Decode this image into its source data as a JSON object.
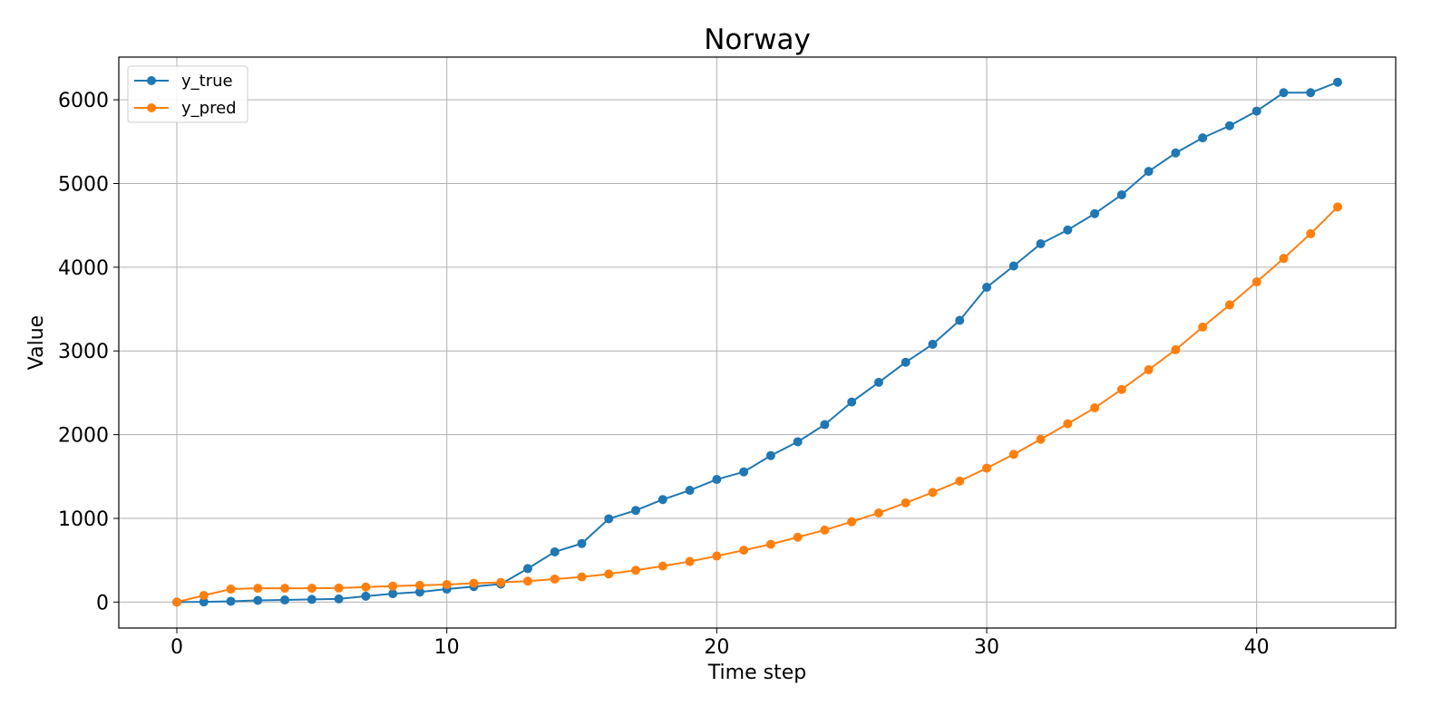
{
  "chart_data": {
    "type": "line",
    "title": "Norway",
    "xlabel": "Time step",
    "ylabel": "Value",
    "xlim": [
      -2.15,
      45.15
    ],
    "ylim": [
      -310,
      6510
    ],
    "xticks": [
      0,
      10,
      20,
      30,
      40
    ],
    "yticks": [
      0,
      1000,
      2000,
      3000,
      4000,
      5000,
      6000
    ],
    "grid": true,
    "legend_position": "upper-left",
    "x": [
      0,
      1,
      2,
      3,
      4,
      5,
      6,
      7,
      8,
      9,
      10,
      11,
      12,
      13,
      14,
      15,
      16,
      17,
      18,
      19,
      20,
      21,
      22,
      23,
      24,
      25,
      26,
      27,
      28,
      29,
      30,
      31,
      32,
      33,
      34,
      35,
      36,
      37,
      38,
      39,
      40,
      41,
      42,
      43
    ],
    "series": [
      {
        "name": "y_true",
        "color": "#1f77b4",
        "values": [
          0,
          2,
          10,
          20,
          25,
          32,
          38,
          70,
          100,
          120,
          155,
          185,
          215,
          400,
          600,
          700,
          995,
          1095,
          1225,
          1335,
          1465,
          1555,
          1750,
          1915,
          2120,
          2390,
          2625,
          2865,
          3080,
          3365,
          3760,
          4015,
          4280,
          4445,
          4640,
          4865,
          5145,
          5365,
          5545,
          5690,
          5865,
          6085,
          6085,
          6210
        ]
      },
      {
        "name": "y_pred",
        "color": "#ff7f0e",
        "values": [
          0,
          80,
          155,
          165,
          165,
          165,
          168,
          180,
          190,
          200,
          210,
          225,
          235,
          250,
          275,
          300,
          335,
          380,
          430,
          485,
          550,
          620,
          690,
          775,
          860,
          960,
          1065,
          1185,
          1310,
          1445,
          1600,
          1765,
          1945,
          2130,
          2320,
          2540,
          2775,
          3015,
          3285,
          3550,
          3825,
          4105,
          4400,
          4720
        ]
      }
    ]
  }
}
